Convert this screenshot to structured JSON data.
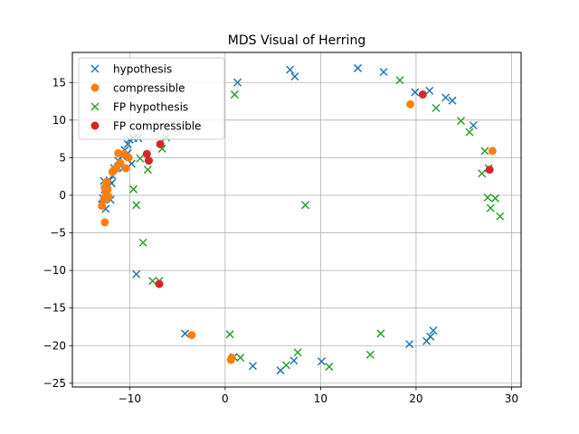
{
  "chart_data": {
    "type": "scatter",
    "title": "MDS Visual of Herring",
    "xlabel": "",
    "ylabel": "",
    "xlim": [
      -16,
      31
    ],
    "ylim": [
      -25.5,
      19
    ],
    "xticks": [
      -10,
      0,
      10,
      20,
      30
    ],
    "yticks": [
      -25,
      -20,
      -15,
      -10,
      -5,
      0,
      5,
      10,
      15
    ],
    "grid": true,
    "legend_position": "top-left",
    "series": [
      {
        "name": "hypothesis",
        "marker": "x",
        "color": "#1f77b4",
        "points": [
          [
            -12.6,
            0.8
          ],
          [
            -12.4,
            1.2
          ],
          [
            -12.1,
            2.0
          ],
          [
            -11.8,
            2.6
          ],
          [
            -11.9,
            1.6
          ],
          [
            -12.8,
            -0.4
          ],
          [
            -12.5,
            -1.8
          ],
          [
            -12.9,
            -1.2
          ],
          [
            -11.6,
            3.6
          ],
          [
            -11.2,
            4.6
          ],
          [
            -10.8,
            5.2
          ],
          [
            -10.5,
            6.0
          ],
          [
            -10.2,
            6.8
          ],
          [
            -10.0,
            7.4
          ],
          [
            -9.6,
            7.6
          ],
          [
            -9.1,
            7.6
          ],
          [
            -10.7,
            3.6
          ],
          [
            -9.8,
            4.2
          ],
          [
            -10.2,
            5.6
          ],
          [
            -9.3,
            -10.5
          ],
          [
            -4.2,
            -18.4
          ],
          [
            0.9,
            -21.5
          ],
          [
            1.3,
            15.0
          ],
          [
            2.9,
            -22.7
          ],
          [
            5.8,
            -23.3
          ],
          [
            7.2,
            -22.0
          ],
          [
            6.8,
            16.7
          ],
          [
            7.3,
            15.8
          ],
          [
            10.1,
            -22.1
          ],
          [
            13.9,
            16.9
          ],
          [
            16.6,
            16.4
          ],
          [
            19.3,
            -19.8
          ],
          [
            19.9,
            13.7
          ],
          [
            21.1,
            -19.4
          ],
          [
            21.4,
            13.9
          ],
          [
            21.8,
            -18.0
          ],
          [
            21.5,
            -18.8
          ],
          [
            23.1,
            13.0
          ],
          [
            23.8,
            12.6
          ],
          [
            26.0,
            9.3
          ],
          [
            -12.4,
            0.5
          ],
          [
            -12.0,
            -0.6
          ],
          [
            -12.7,
            1.9
          ]
        ]
      },
      {
        "name": "compressible",
        "marker": "o",
        "color": "#ff7f0e",
        "points": [
          [
            -12.9,
            -1.4
          ],
          [
            -12.7,
            -0.6
          ],
          [
            -12.5,
            0.2
          ],
          [
            -12.6,
            1.0
          ],
          [
            -12.4,
            1.8
          ],
          [
            -12.2,
            -0.2
          ],
          [
            -12.6,
            -3.6
          ],
          [
            -11.8,
            3.1
          ],
          [
            -11.4,
            3.6
          ],
          [
            -11.0,
            4.3
          ],
          [
            -11.2,
            5.6
          ],
          [
            -10.6,
            5.5
          ],
          [
            -10.1,
            5.0
          ],
          [
            -10.4,
            3.6
          ],
          [
            -11.6,
            3.4
          ],
          [
            -12.3,
            0.8
          ],
          [
            -3.5,
            -18.6
          ],
          [
            0.7,
            -21.6
          ],
          [
            0.6,
            -21.9
          ],
          [
            19.4,
            12.1
          ],
          [
            28.0,
            5.9
          ]
        ]
      },
      {
        "name": "FP hypothesis",
        "marker": "x",
        "color": "#2ca02c",
        "points": [
          [
            -9.3,
            -1.3
          ],
          [
            -9.6,
            0.8
          ],
          [
            -8.6,
            -6.3
          ],
          [
            -8.1,
            3.4
          ],
          [
            -8.9,
            4.9
          ],
          [
            -7.6,
            -11.4
          ],
          [
            -6.9,
            -11.4
          ],
          [
            -6.6,
            6.2
          ],
          [
            -6.2,
            7.7
          ],
          [
            0.5,
            -18.5
          ],
          [
            1.0,
            13.4
          ],
          [
            1.6,
            -21.6
          ],
          [
            6.4,
            -22.6
          ],
          [
            7.6,
            -20.9
          ],
          [
            8.4,
            -1.3
          ],
          [
            10.9,
            -22.8
          ],
          [
            15.2,
            -21.2
          ],
          [
            16.3,
            -18.4
          ],
          [
            18.3,
            15.3
          ],
          [
            22.1,
            11.6
          ],
          [
            24.7,
            9.9
          ],
          [
            25.6,
            8.4
          ],
          [
            26.9,
            2.9
          ],
          [
            27.2,
            5.9
          ],
          [
            27.5,
            -0.3
          ],
          [
            27.8,
            -1.7
          ],
          [
            28.3,
            -0.4
          ],
          [
            28.8,
            -2.8
          ],
          [
            27.6,
            3.6
          ]
        ]
      },
      {
        "name": "FP compressible",
        "marker": "o",
        "color": "#d62728",
        "points": [
          [
            -8.0,
            4.6
          ],
          [
            -8.2,
            5.5
          ],
          [
            -6.8,
            6.8
          ],
          [
            -6.9,
            -11.8
          ],
          [
            20.7,
            13.4
          ],
          [
            27.7,
            3.4
          ]
        ]
      }
    ]
  }
}
